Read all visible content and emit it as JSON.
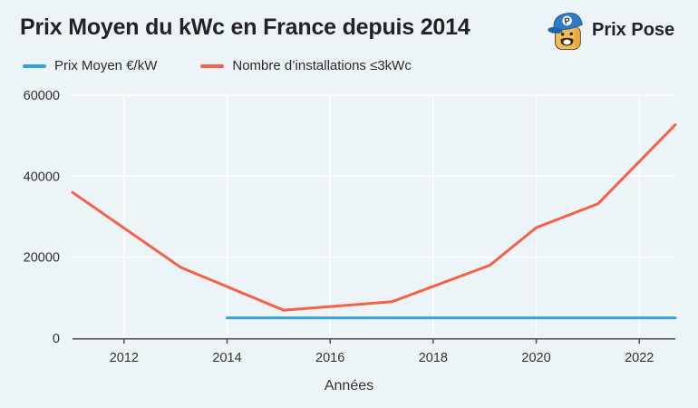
{
  "page": {
    "background": "#ECF4F7",
    "gridline_color": "#FFFFFF",
    "axis_color": "#4D4D4D"
  },
  "header": {
    "title": "Prix Moyen du kWc en France depuis 2014",
    "logo": {
      "text": "Prix Pose",
      "icon": "prix-pose-mascot-icon",
      "badge_letter": "P",
      "cap_color": "#2C7BC5",
      "face_color": "#F2BD53"
    }
  },
  "legend": {
    "items": [
      {
        "label": "Prix Moyen €/kW",
        "color": "#35A1DB"
      },
      {
        "label": "Nombre d’installations ≤3kWc",
        "color": "#F4624A"
      }
    ]
  },
  "chart_data": {
    "type": "line",
    "title": "Prix Moyen du kWc en France depuis 2014",
    "xlabel": "Années",
    "ylabel": "",
    "x_range": [
      2011,
      2022.7
    ],
    "y_range": [
      0,
      60000
    ],
    "x_ticks": [
      2012,
      2014,
      2016,
      2018,
      2020,
      2022
    ],
    "y_ticks": [
      0,
      20000,
      40000,
      60000
    ],
    "grid": true,
    "legend_position": "top-left",
    "series": [
      {
        "name": "Prix Moyen €/kW",
        "color": "#35A1DB",
        "points": [
          [
            2014,
            5000
          ],
          [
            2022.7,
            5000
          ]
        ]
      },
      {
        "name": "Nombre d’installations ≤3kWc",
        "color": "#F4624A",
        "points": [
          [
            2011,
            36000
          ],
          [
            2013.1,
            17500
          ],
          [
            2015.1,
            6900
          ],
          [
            2017.2,
            9000
          ],
          [
            2019.1,
            18000
          ],
          [
            2020,
            27300
          ],
          [
            2021.2,
            33200
          ],
          [
            2022.7,
            52700
          ]
        ]
      }
    ]
  }
}
